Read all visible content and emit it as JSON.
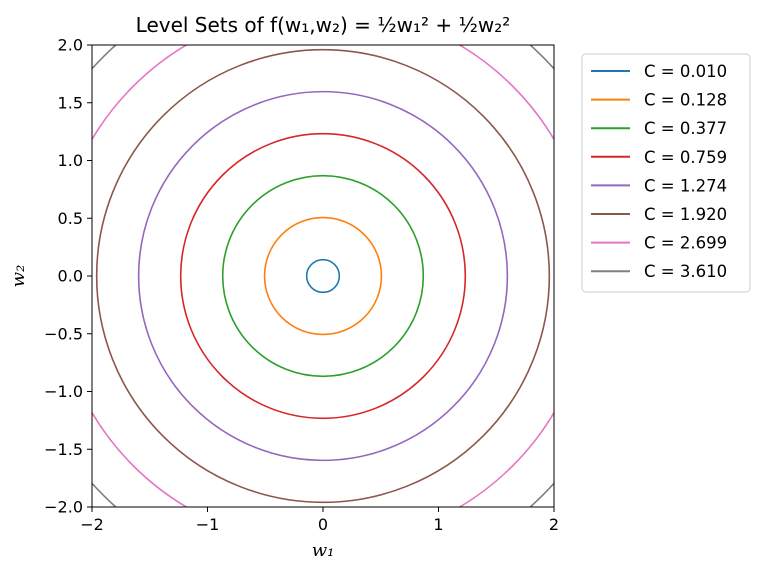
{
  "chart_data": {
    "type": "line",
    "title": "Level Sets of f(w₁,w₂) = ½w₁² + ½w₂²",
    "xlabel": "w₁",
    "ylabel": "w₂",
    "xlim": [
      -2,
      2
    ],
    "ylim": [
      -2,
      2
    ],
    "xticks": [
      "−2",
      "−1",
      "0",
      "1",
      "2"
    ],
    "yticks": [
      "−2.0",
      "−1.5",
      "−1.0",
      "−0.5",
      "0.0",
      "0.5",
      "1.0",
      "1.5",
      "2.0"
    ],
    "grid": false,
    "legend_position": "outside-right",
    "series": [
      {
        "name": "C = 0.010",
        "level": 0.01,
        "color": "#1f77b4"
      },
      {
        "name": "C = 0.128",
        "level": 0.128,
        "color": "#ff7f0e"
      },
      {
        "name": "C = 0.377",
        "level": 0.377,
        "color": "#2ca02c"
      },
      {
        "name": "C = 0.759",
        "level": 0.759,
        "color": "#d62728"
      },
      {
        "name": "C = 1.274",
        "level": 1.274,
        "color": "#9467bd"
      },
      {
        "name": "C = 1.920",
        "level": 1.92,
        "color": "#8c564b"
      },
      {
        "name": "C = 2.699",
        "level": 2.699,
        "color": "#e377c2"
      },
      {
        "name": "C = 3.610",
        "level": 3.61,
        "color": "#7f7f7f"
      }
    ]
  }
}
